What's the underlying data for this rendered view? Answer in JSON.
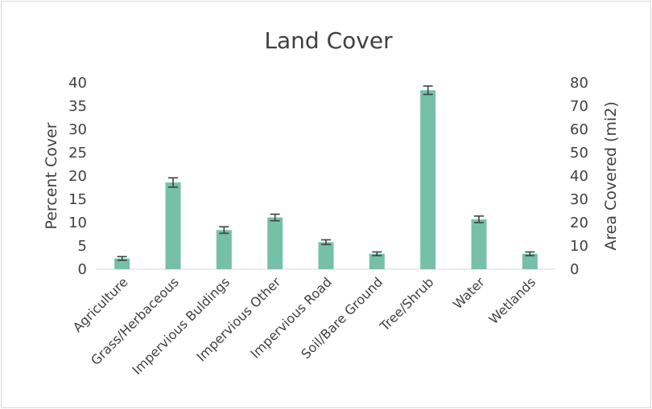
{
  "chart_data": {
    "type": "bar",
    "title": "Land Cover",
    "ylabel": "Percent Cover",
    "y2label": "Area Covered (mi2)",
    "categories": [
      "Agriculture",
      "Grass/Herbaceous",
      "Impervious Buldings",
      "Impervious Other",
      "Impervious Road",
      "Soil/Bare Ground",
      "Tree/Shrub",
      "Water",
      "Wetlands"
    ],
    "values": [
      2.3,
      18.6,
      8.4,
      11.1,
      5.8,
      3.3,
      38.4,
      10.7,
      3.3
    ],
    "error": [
      0.4,
      1.0,
      0.7,
      0.7,
      0.5,
      0.4,
      0.9,
      0.7,
      0.4
    ],
    "ylim": [
      0,
      40
    ],
    "yticks": [
      "0",
      "5",
      "10",
      "15",
      "20",
      "25",
      "30",
      "35",
      "40"
    ],
    "y2lim": [
      0,
      80
    ],
    "y2ticks": [
      "0",
      "10",
      "20",
      "30",
      "40",
      "50",
      "60",
      "70",
      "80"
    ],
    "grid": false,
    "legend": "none",
    "colors": {
      "bar": "#76c0a8",
      "error": "#404040",
      "text": "#404040",
      "axis": "#d9d9d9"
    }
  }
}
